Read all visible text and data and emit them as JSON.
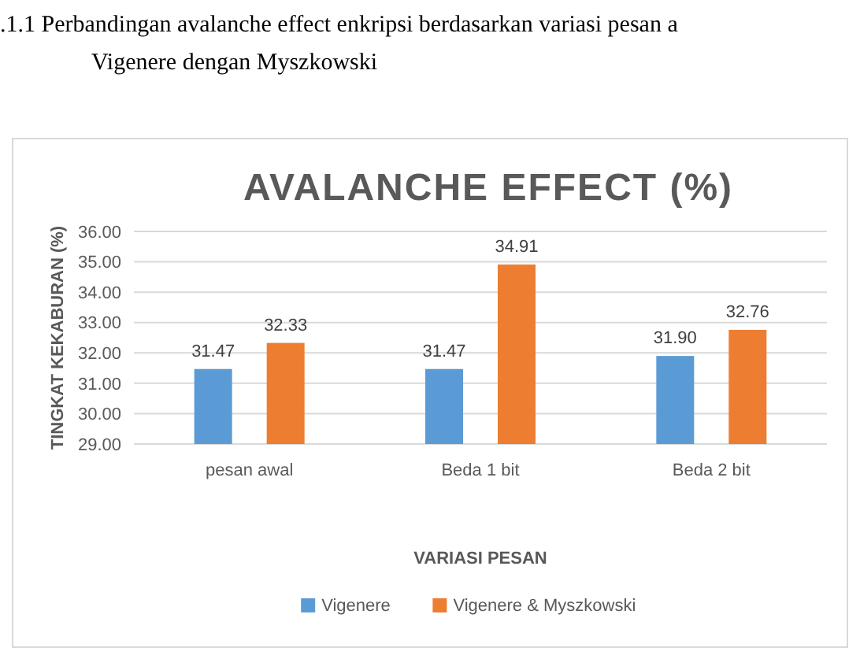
{
  "chart_data": {
    "type": "bar",
    "title": "AVALANCHE EFFECT (%)",
    "xlabel": "VARIASI PESAN",
    "ylabel": "TINGKAT KEKABURAN (%)",
    "annotations": [
      ".1.1   Perbandingan avalanche effect enkripsi berdasarkan variasi pesan a",
      "Vigenere dengan Myszkowski"
    ],
    "categories": [
      "pesan awal",
      "Beda 1 bit",
      "Beda 2 bit"
    ],
    "series": [
      {
        "name": "Vigenere",
        "color": "#5b9bd5",
        "values": [
          31.47,
          31.47,
          31.9
        ],
        "value_labels": [
          "31.47",
          "31.47",
          "31.90"
        ]
      },
      {
        "name": "Vigenere & Myszkowski",
        "color": "#ed7d31",
        "values": [
          32.33,
          34.91,
          32.76
        ],
        "value_labels": [
          "32.33",
          "34.91",
          "32.76"
        ]
      }
    ],
    "ylim": [
      29,
      36
    ],
    "yticks": [
      {
        "value": 29,
        "label": "29.00"
      },
      {
        "value": 30,
        "label": "30.00"
      },
      {
        "value": 31,
        "label": "31.00"
      },
      {
        "value": 32,
        "label": "32.00"
      },
      {
        "value": 33,
        "label": "33.00"
      },
      {
        "value": 34,
        "label": "34.00"
      },
      {
        "value": 35,
        "label": "35.00"
      },
      {
        "value": 36,
        "label": "36.00"
      }
    ],
    "grid": "y",
    "legend": "bottom"
  }
}
